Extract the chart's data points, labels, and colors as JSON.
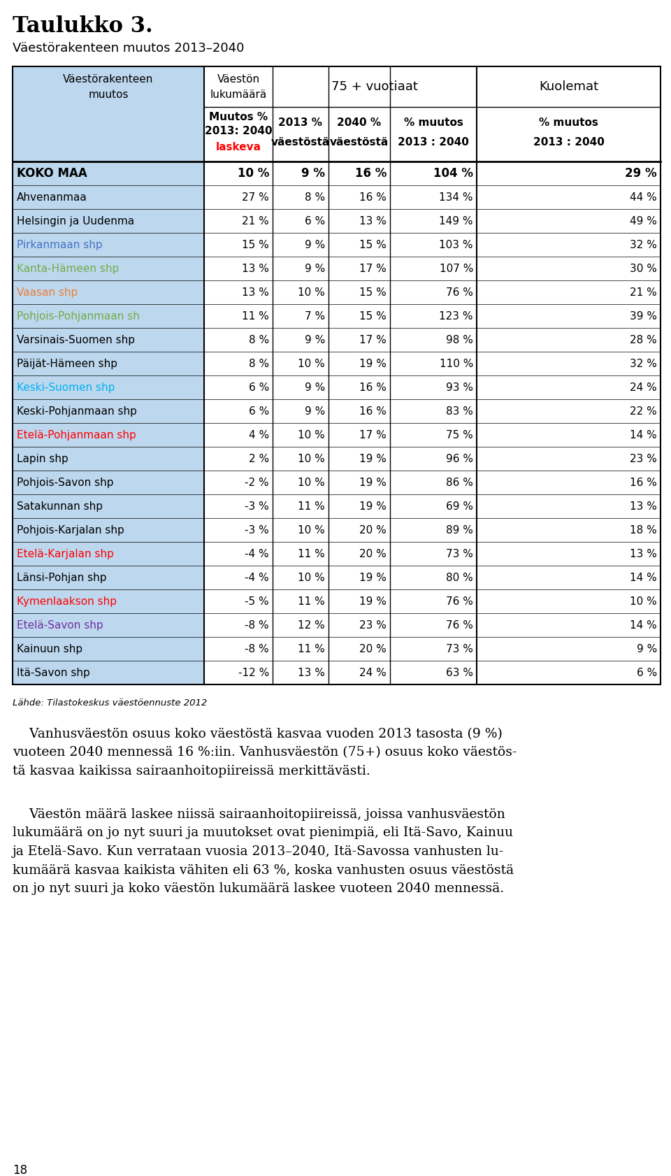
{
  "title": "Taulukko 3.",
  "subtitle": "Väestörakenteen muutos 2013–2040",
  "header_col1_line1": "Väestörakenteen",
  "header_col1_line2": "muutos",
  "header_col2_line1": "Väestön",
  "header_col2_line2": "lukumäärä",
  "header_col2_line3": "Muutos %",
  "header_col2_line4": "2013: 2040",
  "header_col2_line5": "laskeva",
  "header_group2": "75 + vuotiaat",
  "header_group3": "Kuolemat",
  "rows": [
    {
      "name": "KOKO MAA",
      "color": "#000000",
      "bold": true,
      "v1": "10 %",
      "v2": "9 %",
      "v3": "16 %",
      "v4": "104 %",
      "v5": "29 %"
    },
    {
      "name": "Ahvenanmaa",
      "color": "#000000",
      "bold": false,
      "v1": "27 %",
      "v2": "8 %",
      "v3": "16 %",
      "v4": "134 %",
      "v5": "44 %"
    },
    {
      "name": "Helsingin ja Uudenma",
      "color": "#000000",
      "bold": false,
      "v1": "21 %",
      "v2": "6 %",
      "v3": "13 %",
      "v4": "149 %",
      "v5": "49 %"
    },
    {
      "name": "Pirkanmaan shp",
      "color": "#4472C4",
      "bold": false,
      "v1": "15 %",
      "v2": "9 %",
      "v3": "15 %",
      "v4": "103 %",
      "v5": "32 %"
    },
    {
      "name": "Kanta-Hämeen shp",
      "color": "#70AD47",
      "bold": false,
      "v1": "13 %",
      "v2": "9 %",
      "v3": "17 %",
      "v4": "107 %",
      "v5": "30 %"
    },
    {
      "name": "Vaasan shp",
      "color": "#ED7D31",
      "bold": false,
      "v1": "13 %",
      "v2": "10 %",
      "v3": "15 %",
      "v4": "76 %",
      "v5": "21 %"
    },
    {
      "name": "Pohjois-Pohjanmaan sh",
      "color": "#70AD47",
      "bold": false,
      "v1": "11 %",
      "v2": "7 %",
      "v3": "15 %",
      "v4": "123 %",
      "v5": "39 %"
    },
    {
      "name": "Varsinais-Suomen shp",
      "color": "#000000",
      "bold": false,
      "v1": "8 %",
      "v2": "9 %",
      "v3": "17 %",
      "v4": "98 %",
      "v5": "28 %"
    },
    {
      "name": "Päijät-Hämeen shp",
      "color": "#000000",
      "bold": false,
      "v1": "8 %",
      "v2": "10 %",
      "v3": "19 %",
      "v4": "110 %",
      "v5": "32 %"
    },
    {
      "name": "Keski-Suomen shp",
      "color": "#00B0F0",
      "bold": false,
      "v1": "6 %",
      "v2": "9 %",
      "v3": "16 %",
      "v4": "93 %",
      "v5": "24 %"
    },
    {
      "name": "Keski-Pohjanmaan shp",
      "color": "#000000",
      "bold": false,
      "v1": "6 %",
      "v2": "9 %",
      "v3": "16 %",
      "v4": "83 %",
      "v5": "22 %"
    },
    {
      "name": "Etelä-Pohjanmaan shp",
      "color": "#FF0000",
      "bold": false,
      "v1": "4 %",
      "v2": "10 %",
      "v3": "17 %",
      "v4": "75 %",
      "v5": "14 %"
    },
    {
      "name": "Lapin shp",
      "color": "#000000",
      "bold": false,
      "v1": "2 %",
      "v2": "10 %",
      "v3": "19 %",
      "v4": "96 %",
      "v5": "23 %"
    },
    {
      "name": "Pohjois-Savon shp",
      "color": "#000000",
      "bold": false,
      "v1": "-2 %",
      "v2": "10 %",
      "v3": "19 %",
      "v4": "86 %",
      "v5": "16 %"
    },
    {
      "name": "Satakunnan shp",
      "color": "#000000",
      "bold": false,
      "v1": "-3 %",
      "v2": "11 %",
      "v3": "19 %",
      "v4": "69 %",
      "v5": "13 %"
    },
    {
      "name": "Pohjois-Karjalan shp",
      "color": "#000000",
      "bold": false,
      "v1": "-3 %",
      "v2": "10 %",
      "v3": "20 %",
      "v4": "89 %",
      "v5": "18 %"
    },
    {
      "name": "Etelä-Karjalan shp",
      "color": "#FF0000",
      "bold": false,
      "v1": "-4 %",
      "v2": "11 %",
      "v3": "20 %",
      "v4": "73 %",
      "v5": "13 %"
    },
    {
      "name": "Länsi-Pohjan shp",
      "color": "#000000",
      "bold": false,
      "v1": "-4 %",
      "v2": "10 %",
      "v3": "19 %",
      "v4": "80 %",
      "v5": "14 %"
    },
    {
      "name": "Kymenlaakson shp",
      "color": "#FF0000",
      "bold": false,
      "v1": "-5 %",
      "v2": "11 %",
      "v3": "19 %",
      "v4": "76 %",
      "v5": "10 %"
    },
    {
      "name": "Etelä-Savon shp",
      "color": "#7030A0",
      "bold": false,
      "v1": "-8 %",
      "v2": "12 %",
      "v3": "23 %",
      "v4": "76 %",
      "v5": "14 %"
    },
    {
      "name": "Kainuun shp",
      "color": "#000000",
      "bold": false,
      "v1": "-8 %",
      "v2": "11 %",
      "v3": "20 %",
      "v4": "73 %",
      "v5": "9 %"
    },
    {
      "name": "Itä-Savon shp",
      "color": "#000000",
      "bold": false,
      "v1": "-12 %",
      "v2": "13 %",
      "v3": "24 %",
      "v4": "63 %",
      "v5": "6 %"
    }
  ],
  "source": "Lähde: Tilastokeskus väestöennuste 2012",
  "body_text_1": "    Vanhusväestön osuus koko väestöstä kasvaa vuoden 2013 tasosta (9 %)\nvuoteen 2040 mennessä 16 %:iin. Vanhusväestön (75+) osuus koko väestös-\ntä kasvaa kaikissa sairaanhoitopiireissä merkittävästi.",
  "body_text_2": "    Väestön määrä laskee niissä sairaanhoitopiireissä, joissa vanhusväestön\nlukumäärä on jo nyt suuri ja muutokset ovat pienimpiä, eli Itä-Savo, Kainuu\nja Etelä-Savo. Kun verrataan vuosia 2013–2040, Itä-Savossa vanhusten lu-\nkumäärä kasvaa kaikista vähiten eli 63 %, koska vanhusten osuus väestöstä\non jo nyt suuri ja koko väestön lukumäärä laskee vuoteen 2040 mennessä.",
  "page_number": "18",
  "bg_color": "#BDD7EE",
  "laskeva_color": "#FF0000"
}
